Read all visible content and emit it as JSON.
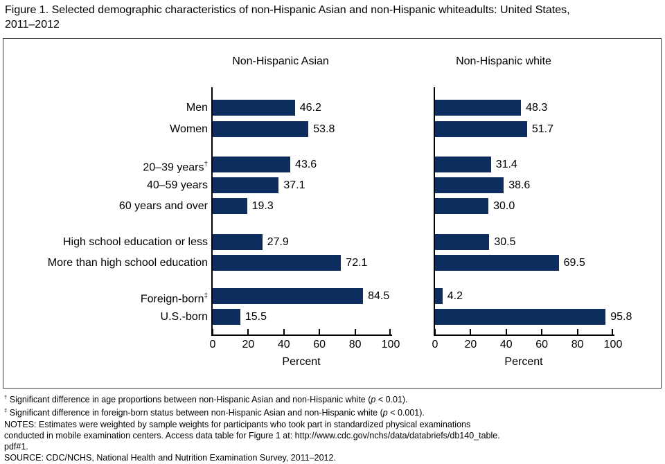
{
  "title_line1": "Figure 1. Selected demographic characteristics of non-Hispanic Asian and non-Hispanic whiteadults: United States,",
  "title_line2": "2011–2012",
  "chart_data": {
    "type": "bar",
    "orientation": "horizontal",
    "categories": [
      {
        "label": "Men",
        "sup": ""
      },
      {
        "label": "Women",
        "sup": ""
      },
      {
        "label": "20–39 years",
        "sup": "†"
      },
      {
        "label": "40–59 years",
        "sup": ""
      },
      {
        "label": "60 years and over",
        "sup": ""
      },
      {
        "label": "High school education or less",
        "sup": ""
      },
      {
        "label": "More than high school education",
        "sup": ""
      },
      {
        "label": "Foreign-born",
        "sup": "‡"
      },
      {
        "label": "U.S.-born",
        "sup": ""
      }
    ],
    "groups": [
      [
        0,
        1
      ],
      [
        2,
        3,
        4
      ],
      [
        5,
        6
      ],
      [
        7,
        8
      ]
    ],
    "series": [
      {
        "name": "Non-Hispanic Asian",
        "values": [
          46.2,
          53.8,
          43.6,
          37.1,
          19.3,
          27.9,
          72.1,
          84.5,
          15.5
        ]
      },
      {
        "name": "Non-Hispanic white",
        "values": [
          48.3,
          51.7,
          31.4,
          38.6,
          30.0,
          30.5,
          69.5,
          4.2,
          95.8
        ]
      }
    ],
    "xlabel": "Percent",
    "xlim": [
      0,
      100
    ],
    "xticks": [
      0,
      20,
      40,
      60,
      80,
      100
    ],
    "bar_color": "#0c2d5e",
    "value_labels": true,
    "grid": false,
    "legend_position": "none"
  },
  "footnotes": [
    {
      "sup": "†",
      "pre": " Significant difference in age proportions between non-Hispanic Asian and non-Hispanic white (",
      "p": "p",
      "post": " < 0.01)."
    },
    {
      "sup": "‡",
      "pre": " Significant difference in foreign-born status between non-Hispanic Asian and non-Hispanic white (",
      "p": "p",
      "post": " < 0.001)."
    }
  ],
  "notes_lines": [
    "NOTES: Estimates were weighted by sample weights for participants who took part in standardized physical examinations",
    "conducted in mobile examination centers. Access data table for Figure 1 at: http://www.cdc.gov/nchs/data/databriefs/db140_table.",
    "pdf#1."
  ],
  "source_line": "SOURCE: CDC/NCHS, National Health and Nutrition Examination Survey, 2011–2012."
}
